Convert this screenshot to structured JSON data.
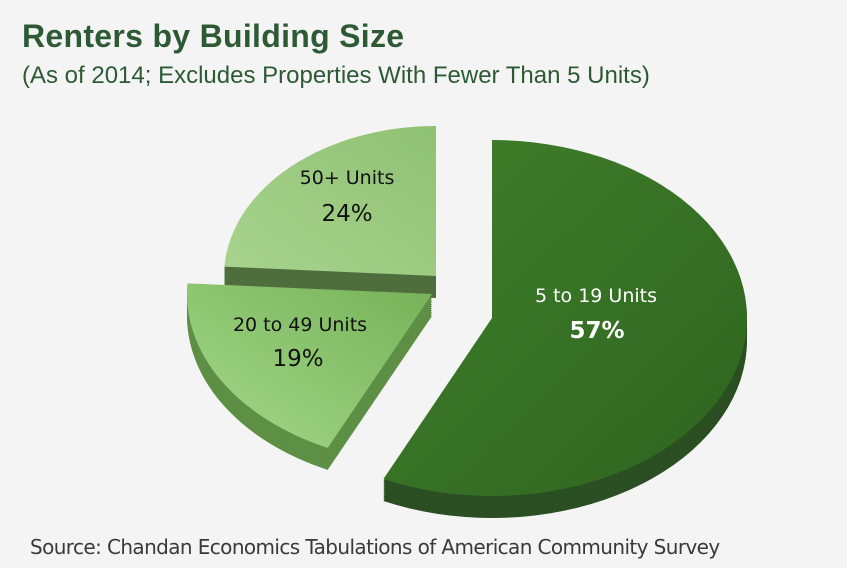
{
  "chart_data": {
    "type": "pie",
    "style": "3d-exploded",
    "title": "Renters by Building Size",
    "subtitle": "(As of 2014; Excludes Properties With Fewer Than 5 Units)",
    "slices": [
      {
        "label": "5 to 19 Units",
        "value": 57,
        "value_label": "57%",
        "color": "#3b7826"
      },
      {
        "label": "20 to 49 Units",
        "value": 19,
        "value_label": "19%",
        "color": "#8cc46e"
      },
      {
        "label": "50+ Units",
        "value": 24,
        "value_label": "24%",
        "color": "#9dcb82"
      }
    ],
    "source": "Source: Chandan Economics Tabulations of American Community Survey"
  }
}
